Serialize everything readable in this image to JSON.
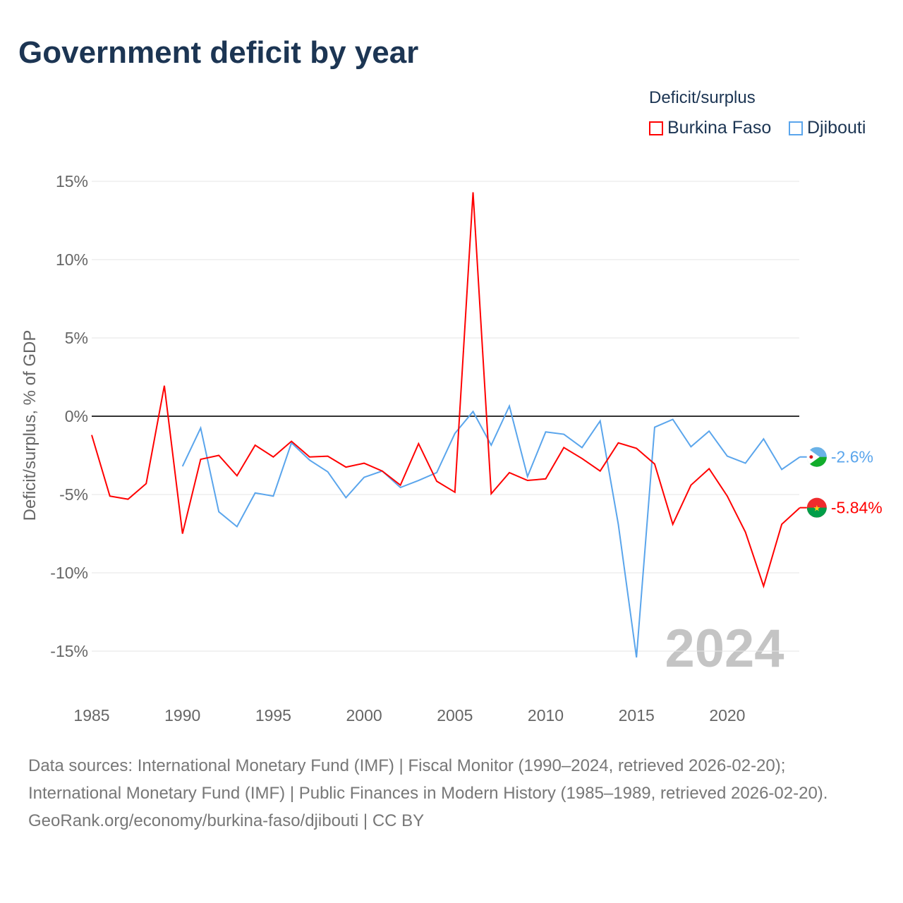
{
  "title": "Government deficit by year",
  "legend": {
    "title": "Deficit/surplus",
    "items": [
      {
        "label": "Burkina Faso",
        "color": "#ff0000"
      },
      {
        "label": "Djibouti",
        "color": "#5aa5ec"
      }
    ]
  },
  "source": {
    "line1": "Data sources: International Monetary Fund (IMF) | Fiscal Monitor (1990–2024, retrieved 2026-02-20); International Monetary Fund (IMF) | Public Finances in Modern History (1985–1989, retrieved 2026-02-20).",
    "line2": "GeoRank.org/economy/burkina-faso/djibouti | CC BY"
  },
  "chart_data": {
    "type": "line",
    "title": "Government deficit by year",
    "ylabel": "Deficit/surplus, % of GDP",
    "xlabel": "",
    "xlim": [
      1985,
      2024
    ],
    "ylim": [
      -17,
      16
    ],
    "yticks": [
      15,
      10,
      5,
      0,
      -5,
      -10,
      -15
    ],
    "ytick_labels": [
      "15%",
      "10%",
      "5%",
      "0%",
      "-5%",
      "-10%",
      "-15%"
    ],
    "xticks": [
      1985,
      1990,
      1995,
      2000,
      2005,
      2010,
      2015,
      2020
    ],
    "xtick_labels": [
      "1985",
      "1990",
      "1995",
      "2000",
      "2005",
      "2010",
      "2015",
      "2020"
    ],
    "watermark_year": "2024",
    "series": [
      {
        "name": "Burkina Faso",
        "color": "#ff0000",
        "end_label": "-5.84%",
        "x": [
          1985,
          1986,
          1987,
          1988,
          1989,
          1990,
          1991,
          1992,
          1993,
          1994,
          1995,
          1996,
          1997,
          1998,
          1999,
          2000,
          2001,
          2002,
          2003,
          2004,
          2005,
          2006,
          2007,
          2008,
          2009,
          2010,
          2011,
          2012,
          2013,
          2014,
          2015,
          2016,
          2017,
          2018,
          2019,
          2020,
          2021,
          2022,
          2023,
          2024
        ],
        "values": [
          -1.2,
          -5.1,
          -5.3,
          -4.3,
          1.95,
          -7.5,
          -2.75,
          -2.5,
          -3.8,
          -1.85,
          -2.6,
          -1.6,
          -2.6,
          -2.55,
          -3.25,
          -3.0,
          -3.5,
          -4.4,
          -1.75,
          -4.15,
          -4.85,
          14.3,
          -4.95,
          -3.6,
          -4.1,
          -4.0,
          -2.0,
          -2.7,
          -3.5,
          -1.7,
          -2.05,
          -3.05,
          -6.9,
          -4.4,
          -3.35,
          -5.1,
          -7.4,
          -10.85,
          -6.9,
          -5.84
        ]
      },
      {
        "name": "Djibouti",
        "color": "#5aa5ec",
        "end_label": "-2.6%",
        "x": [
          1990,
          1991,
          1992,
          1993,
          1994,
          1995,
          1996,
          1997,
          1998,
          1999,
          2000,
          2001,
          2002,
          2003,
          2004,
          2005,
          2006,
          2007,
          2008,
          2009,
          2010,
          2011,
          2012,
          2013,
          2014,
          2015,
          2016,
          2017,
          2018,
          2019,
          2020,
          2021,
          2022,
          2023,
          2024
        ],
        "values": [
          -3.2,
          -0.75,
          -6.1,
          -7.05,
          -4.9,
          -5.1,
          -1.7,
          -2.8,
          -3.55,
          -5.2,
          -3.9,
          -3.5,
          -4.55,
          -4.1,
          -3.6,
          -1.1,
          0.3,
          -1.85,
          0.65,
          -3.85,
          -1.0,
          -1.15,
          -2.0,
          -0.3,
          -6.9,
          -15.4,
          -0.7,
          -0.2,
          -1.95,
          -0.95,
          -2.55,
          -3.0,
          -1.45,
          -3.4,
          -2.6
        ]
      }
    ]
  }
}
